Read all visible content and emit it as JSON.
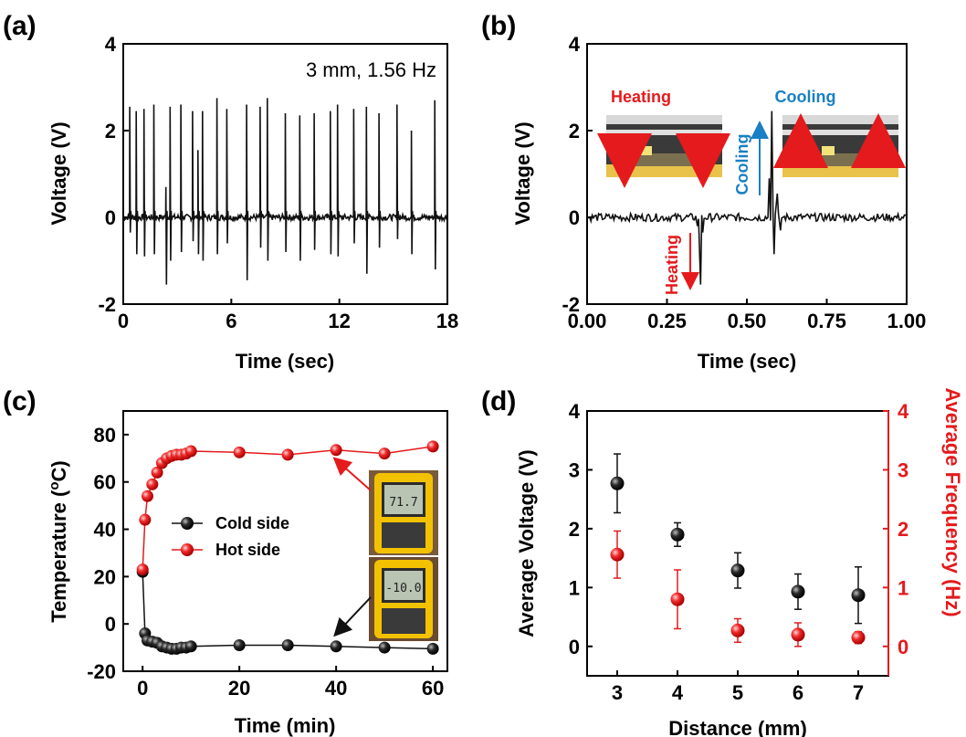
{
  "chart_data": [
    {
      "panel": "(a)",
      "type": "line",
      "annotation": "3 mm, 1.56 Hz",
      "xlabel": "Time (sec)",
      "ylabel": "Voltage (V)",
      "xlim": [
        0,
        18
      ],
      "ylim": [
        -2,
        4
      ],
      "xticks": [
        "0",
        "6",
        "12",
        "18"
      ],
      "yticks": [
        "-2",
        "0",
        "2",
        "4"
      ],
      "color": "#111111",
      "baseline": 0,
      "peaks": [
        {
          "t": 0.36,
          "pos": 2.55,
          "neg": -0.35
        },
        {
          "t": 0.72,
          "pos": 2.45,
          "neg": -0.85
        },
        {
          "t": 1.15,
          "pos": 2.5,
          "neg": -0.9
        },
        {
          "t": 1.7,
          "pos": 2.6,
          "neg": -0.85
        },
        {
          "t": 2.37,
          "pos": 0.7,
          "neg": -1.55
        },
        {
          "t": 2.6,
          "pos": 2.55,
          "neg": -1.0
        },
        {
          "t": 3.2,
          "pos": 2.6,
          "neg": -0.8
        },
        {
          "t": 3.85,
          "pos": 2.45,
          "neg": -0.55
        },
        {
          "t": 4.15,
          "pos": 1.55,
          "neg": -0.85
        },
        {
          "t": 4.4,
          "pos": 2.45,
          "neg": -1.0
        },
        {
          "t": 5.2,
          "pos": 2.75,
          "neg": -0.85
        },
        {
          "t": 5.75,
          "pos": 2.5,
          "neg": -0.6
        },
        {
          "t": 6.85,
          "pos": 2.6,
          "neg": -1.45
        },
        {
          "t": 7.6,
          "pos": 2.55,
          "neg": -0.7
        },
        {
          "t": 8.0,
          "pos": 2.75,
          "neg": -1.0
        },
        {
          "t": 9.0,
          "pos": 2.4,
          "neg": -0.8
        },
        {
          "t": 9.8,
          "pos": 2.35,
          "neg": -1.0
        },
        {
          "t": 10.6,
          "pos": 2.4,
          "neg": -0.75
        },
        {
          "t": 11.5,
          "pos": 2.45,
          "neg": -0.85
        },
        {
          "t": 11.9,
          "pos": 2.6,
          "neg": -0.9
        },
        {
          "t": 12.8,
          "pos": 2.5,
          "neg": -0.6
        },
        {
          "t": 13.5,
          "pos": 2.55,
          "neg": -1.3
        },
        {
          "t": 14.2,
          "pos": 2.4,
          "neg": -0.7
        },
        {
          "t": 15.2,
          "pos": 2.6,
          "neg": -0.5
        },
        {
          "t": 16.0,
          "pos": 2.0,
          "neg": -0.85
        },
        {
          "t": 17.3,
          "pos": 2.7,
          "neg": -1.2
        }
      ]
    },
    {
      "panel": "(b)",
      "type": "line",
      "xlabel": "Time (sec)",
      "ylabel": "Voltage (V)",
      "xlim": [
        0,
        1
      ],
      "ylim": [
        -2,
        4
      ],
      "xticks": [
        "0.00",
        "0.25",
        "0.50",
        "0.75",
        "1.00"
      ],
      "yticks": [
        "-2",
        "0",
        "2",
        "4"
      ],
      "color": "#111111",
      "baseline": 0,
      "events": [
        {
          "t": 0.345,
          "v": -0.2
        },
        {
          "t": 0.355,
          "v": -1.55
        },
        {
          "t": 0.362,
          "v": -0.35
        },
        {
          "t": 0.57,
          "v": 0.9
        },
        {
          "t": 0.578,
          "v": 2.45
        },
        {
          "t": 0.585,
          "v": -0.85
        },
        {
          "t": 0.595,
          "v": 0.55
        },
        {
          "t": 0.605,
          "v": -0.3
        }
      ],
      "insets": {
        "heating_label": "Heating",
        "cooling_label": "Cooling",
        "heating_arrow_label": "Heating",
        "cooling_arrow_label": "Cooling",
        "heating_color": "#e41a1c",
        "cooling_color": "#1a7fc4"
      }
    },
    {
      "panel": "(c)",
      "type": "line",
      "xlabel": "Time (min)",
      "ylabel": "Temperature (",
      "ylabel_sup": "o",
      "ylabel_end": "C)",
      "xlim": [
        -4,
        63
      ],
      "ylim": [
        -20,
        90
      ],
      "xticks": [
        0,
        20,
        40,
        60
      ],
      "yticks": [
        -20,
        0,
        20,
        40,
        60,
        80
      ],
      "series": [
        {
          "name": "Cold side",
          "color": "#111111",
          "x": [
            0,
            0.5,
            1,
            2,
            3,
            4,
            5,
            6,
            7,
            8,
            9,
            10,
            20,
            30,
            40,
            50,
            60
          ],
          "y": [
            22,
            -4,
            -7,
            -7.5,
            -8,
            -9.5,
            -10,
            -10.5,
            -10.5,
            -10,
            -10,
            -9.5,
            -9,
            -9,
            -9.5,
            -10,
            -10.5
          ]
        },
        {
          "name": "Hot side",
          "color": "#e41a1c",
          "x": [
            0,
            0.5,
            1,
            2,
            3,
            4,
            5,
            6,
            7,
            8,
            9,
            10,
            20,
            30,
            40,
            50,
            60
          ],
          "y": [
            23,
            44,
            54,
            59,
            64,
            68,
            70,
            71,
            71.5,
            71.5,
            72,
            73,
            72.5,
            71.5,
            73.5,
            72,
            75
          ]
        }
      ],
      "insets": {
        "hot_meter": "71.7",
        "cold_meter": "-10.0",
        "hot_arrow_color": "#e41a1c",
        "cold_arrow_color": "#111111"
      }
    },
    {
      "panel": "(d)",
      "type": "scatter",
      "xlabel": "Distance (mm)",
      "ylabel": "Average Voltage (V)",
      "ylabel_right": "Average Frequency (Hz)",
      "xlim": [
        2.5,
        7.5
      ],
      "ylim": [
        -0.5,
        4
      ],
      "xticks": [
        3,
        4,
        5,
        6,
        7
      ],
      "yticks": [
        0,
        1,
        2,
        3,
        4
      ],
      "series": [
        {
          "name": "Average Voltage",
          "color": "#111111",
          "x": [
            3,
            4,
            5,
            6,
            7
          ],
          "y": [
            2.77,
            1.9,
            1.29,
            0.93,
            0.87
          ],
          "err": [
            0.5,
            0.2,
            0.3,
            0.3,
            0.48
          ]
        },
        {
          "name": "Average Frequency",
          "color": "#e41a1c",
          "x": [
            3,
            4,
            5,
            6,
            7
          ],
          "y": [
            1.56,
            0.8,
            0.27,
            0.2,
            0.15
          ],
          "err": [
            0.4,
            0.5,
            0.2,
            0.2,
            0.1
          ]
        }
      ]
    }
  ]
}
